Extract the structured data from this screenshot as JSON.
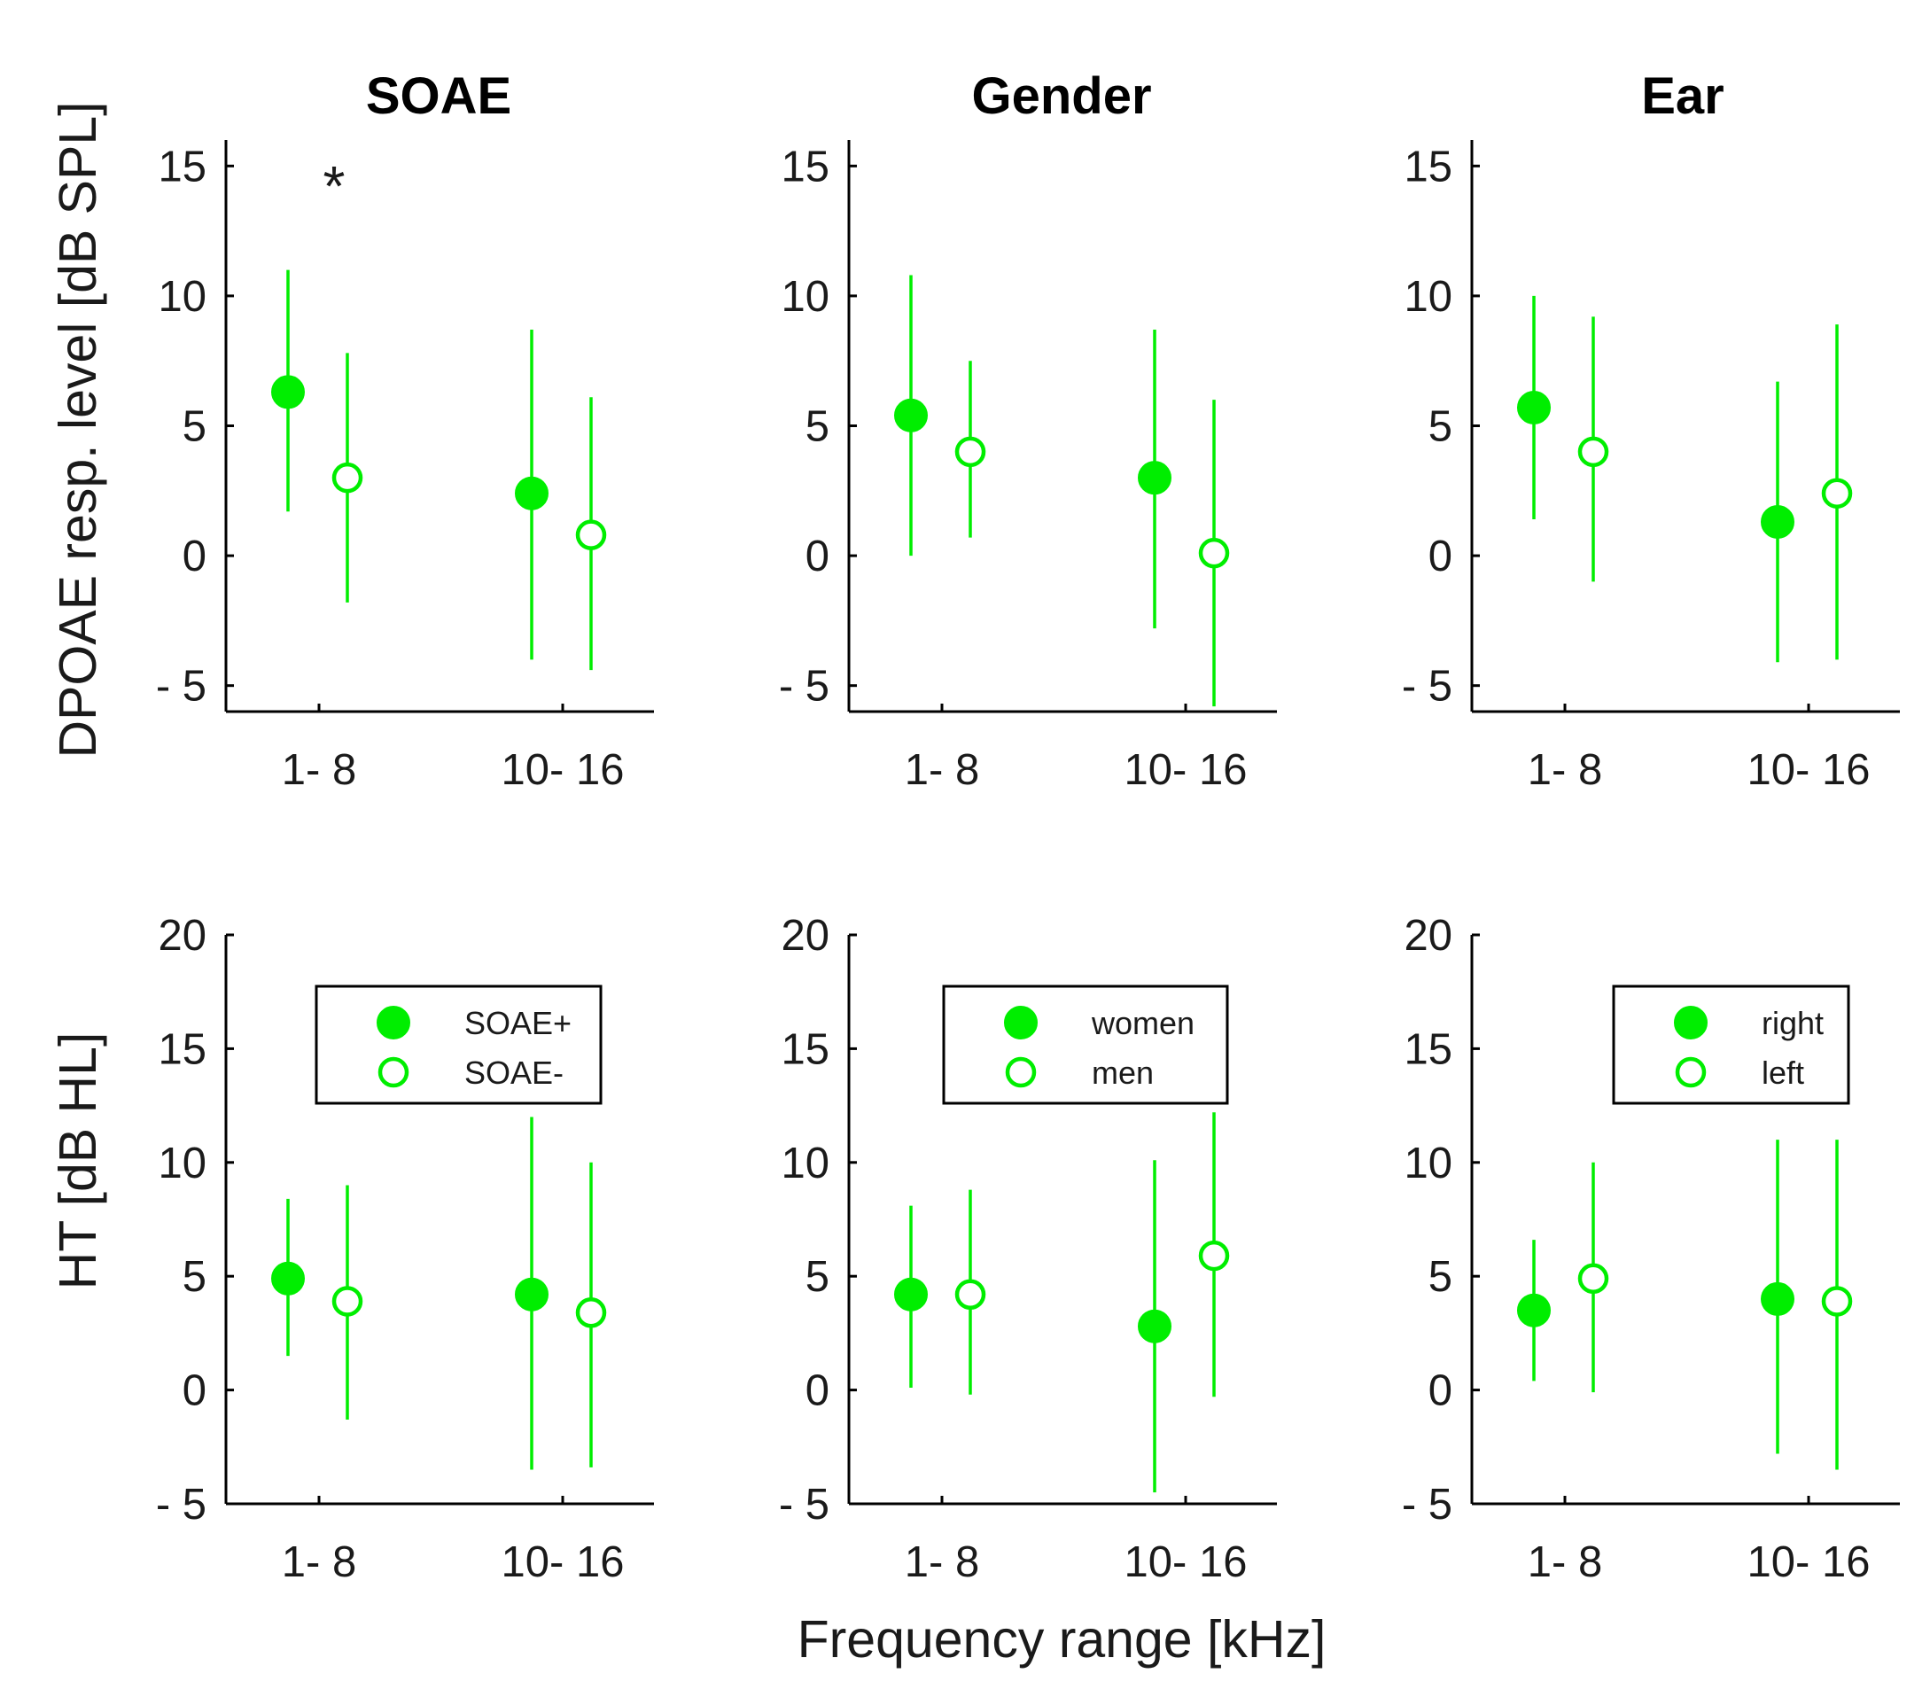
{
  "figure": {
    "xlabel": "Frequency range [kHz]",
    "row_ylabels": [
      "DPOAE resp. level [dB SPL]",
      "HT [dB HL]"
    ],
    "column_titles": [
      "SOAE",
      "Gender",
      "Ear"
    ],
    "accent_color": "#00ee00"
  },
  "chart_data": [
    {
      "id": "top-soae",
      "type": "scatter",
      "title": "SOAE",
      "ylabel": "DPOAE resp. level [dB SPL]",
      "xlabel": "",
      "categories": [
        "1- 8",
        "10- 16"
      ],
      "ylim": [
        -6,
        16
      ],
      "yticks": [
        -5,
        0,
        5,
        10,
        15
      ],
      "y_tick_labels": [
        "- 5",
        "0",
        "5",
        "10",
        "15"
      ],
      "legend": null,
      "annotations": [
        {
          "text": "*",
          "category": "1- 8",
          "y": 14.5
        }
      ],
      "series": [
        {
          "name": "",
          "marker": "filled",
          "values": [
            6.3,
            2.4
          ],
          "upper": [
            11.0,
            8.7
          ],
          "lower": [
            1.7,
            -4.0
          ]
        },
        {
          "name": "",
          "marker": "open",
          "values": [
            3.0,
            0.8
          ],
          "upper": [
            7.8,
            6.1
          ],
          "lower": [
            -1.8,
            -4.4
          ]
        }
      ]
    },
    {
      "id": "top-gender",
      "type": "scatter",
      "title": "Gender",
      "ylabel": "",
      "xlabel": "",
      "categories": [
        "1- 8",
        "10- 16"
      ],
      "ylim": [
        -6,
        16
      ],
      "yticks": [
        -5,
        0,
        5,
        10,
        15
      ],
      "y_tick_labels": [
        "- 5",
        "0",
        "5",
        "10",
        "15"
      ],
      "legend": null,
      "annotations": [],
      "series": [
        {
          "name": "",
          "marker": "filled",
          "values": [
            5.4,
            3.0
          ],
          "upper": [
            10.8,
            8.7
          ],
          "lower": [
            0.0,
            -2.8
          ]
        },
        {
          "name": "",
          "marker": "open",
          "values": [
            4.0,
            0.1
          ],
          "upper": [
            7.5,
            6.0
          ],
          "lower": [
            0.7,
            -5.8
          ]
        }
      ]
    },
    {
      "id": "top-ear",
      "type": "scatter",
      "title": "Ear",
      "ylabel": "",
      "xlabel": "",
      "categories": [
        "1- 8",
        "10- 16"
      ],
      "ylim": [
        -6,
        16
      ],
      "yticks": [
        -5,
        0,
        5,
        10,
        15
      ],
      "y_tick_labels": [
        "- 5",
        "0",
        "5",
        "10",
        "15"
      ],
      "legend": null,
      "annotations": [],
      "series": [
        {
          "name": "",
          "marker": "filled",
          "values": [
            5.7,
            1.3
          ],
          "upper": [
            10.0,
            6.7
          ],
          "lower": [
            1.4,
            -4.1
          ]
        },
        {
          "name": "",
          "marker": "open",
          "values": [
            4.0,
            2.4
          ],
          "upper": [
            9.2,
            8.9
          ],
          "lower": [
            -1.0,
            -4.0
          ]
        }
      ]
    },
    {
      "id": "bottom-soae",
      "type": "scatter",
      "title": "",
      "ylabel": "HT [dB HL]",
      "xlabel": "",
      "categories": [
        "1- 8",
        "10- 16"
      ],
      "ylim": [
        -5,
        20
      ],
      "yticks": [
        -5,
        0,
        5,
        10,
        15,
        20
      ],
      "y_tick_labels": [
        "- 5",
        "0",
        "5",
        "10",
        "15",
        "20"
      ],
      "legend": {
        "position": "top-right"
      },
      "annotations": [],
      "series": [
        {
          "name": "SOAE+",
          "marker": "filled",
          "values": [
            4.9,
            4.2
          ],
          "upper": [
            8.4,
            12.0
          ],
          "lower": [
            1.5,
            -3.5
          ]
        },
        {
          "name": "SOAE-",
          "marker": "open",
          "values": [
            3.9,
            3.4
          ],
          "upper": [
            9.0,
            10.0
          ],
          "lower": [
            -1.3,
            -3.4
          ]
        }
      ]
    },
    {
      "id": "bottom-gender",
      "type": "scatter",
      "title": "",
      "ylabel": "",
      "xlabel": "Frequency range [kHz]",
      "categories": [
        "1- 8",
        "10- 16"
      ],
      "ylim": [
        -5,
        20
      ],
      "yticks": [
        -5,
        0,
        5,
        10,
        15,
        20
      ],
      "y_tick_labels": [
        "- 5",
        "0",
        "5",
        "10",
        "15",
        "20"
      ],
      "legend": {
        "position": "top-right"
      },
      "annotations": [],
      "series": [
        {
          "name": "women",
          "marker": "filled",
          "values": [
            4.2,
            2.8
          ],
          "upper": [
            8.1,
            10.1
          ],
          "lower": [
            0.1,
            -4.5
          ]
        },
        {
          "name": "men",
          "marker": "open",
          "values": [
            4.2,
            5.9
          ],
          "upper": [
            8.8,
            12.2
          ],
          "lower": [
            -0.2,
            -0.3
          ]
        }
      ]
    },
    {
      "id": "bottom-ear",
      "type": "scatter",
      "title": "",
      "ylabel": "",
      "xlabel": "",
      "categories": [
        "1- 8",
        "10- 16"
      ],
      "ylim": [
        -5,
        20
      ],
      "yticks": [
        -5,
        0,
        5,
        10,
        15,
        20
      ],
      "y_tick_labels": [
        "- 5",
        "0",
        "5",
        "10",
        "15",
        "20"
      ],
      "legend": {
        "position": "top-right"
      },
      "annotations": [],
      "series": [
        {
          "name": "right",
          "marker": "filled",
          "values": [
            3.5,
            4.0
          ],
          "upper": [
            6.6,
            11.0
          ],
          "lower": [
            0.4,
            -2.8
          ]
        },
        {
          "name": "left",
          "marker": "open",
          "values": [
            4.9,
            3.9
          ],
          "upper": [
            10.0,
            11.0
          ],
          "lower": [
            -0.1,
            -3.5
          ]
        }
      ]
    }
  ]
}
